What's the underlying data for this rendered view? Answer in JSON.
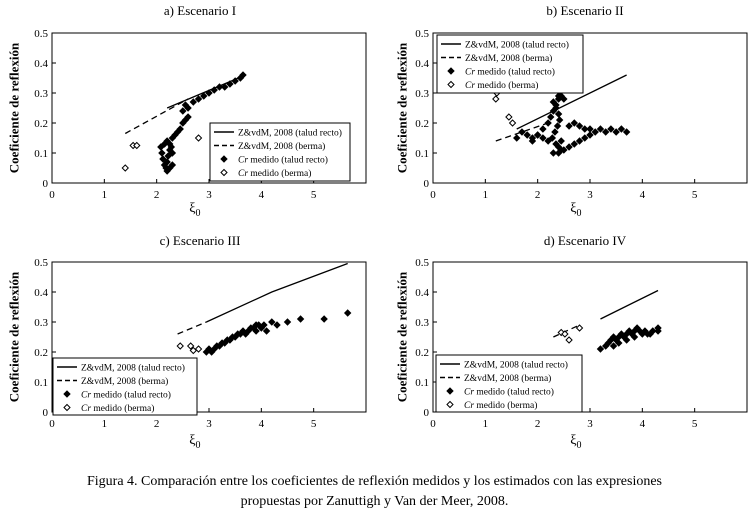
{
  "caption": {
    "line1": "Figura 4. Comparación entre los coeficientes de reflexión medidos y los estimados con las expresiones",
    "line2": "propuestas por Zanuttigh y Van der Meer, 2008."
  },
  "colors": {
    "ink": "#000000",
    "background": "#ffffff"
  },
  "chart_data": [
    {
      "type": "scatter",
      "title": "a) Escenario I",
      "xlabel": "ξ0",
      "ylabel": "Coeficiente de reflexión",
      "xlim": [
        0,
        6
      ],
      "ylim": [
        0,
        0.5
      ],
      "xticks": [
        0,
        1,
        2,
        3,
        4,
        5
      ],
      "yticks": [
        0,
        0.1,
        0.2,
        0.3,
        0.4,
        0.5
      ],
      "legend_position": "bottom-right",
      "series": [
        {
          "name": "Z&vdM, 2008 (talud recto)",
          "style": "solid",
          "x": [
            2.2,
            3.7
          ],
          "y": [
            0.25,
            0.36
          ]
        },
        {
          "name": "Z&vdM, 2008 (berma)",
          "style": "dashed",
          "x": [
            1.4,
            2.6
          ],
          "y": [
            0.165,
            0.28
          ]
        },
        {
          "name": "Cr medido (talud recto)",
          "style": "filled-diamond",
          "x": [
            2.08,
            2.1,
            2.12,
            2.15,
            2.18,
            2.2,
            2.22,
            2.25,
            2.28,
            2.3,
            2.15,
            2.2,
            2.25,
            2.3,
            2.35,
            2.4,
            2.45,
            2.5,
            2.55,
            2.6,
            2.5,
            2.55,
            2.6,
            2.7,
            2.8,
            2.9,
            3.0,
            3.1,
            3.2,
            3.3,
            3.4,
            3.5,
            3.6,
            3.65,
            2.2,
            2.25,
            2.3
          ],
          "y": [
            0.12,
            0.1,
            0.08,
            0.06,
            0.05,
            0.07,
            0.09,
            0.11,
            0.12,
            0.1,
            0.13,
            0.14,
            0.13,
            0.15,
            0.16,
            0.17,
            0.18,
            0.2,
            0.21,
            0.22,
            0.24,
            0.26,
            0.25,
            0.27,
            0.28,
            0.29,
            0.3,
            0.31,
            0.32,
            0.32,
            0.33,
            0.34,
            0.35,
            0.36,
            0.04,
            0.05,
            0.06
          ]
        },
        {
          "name": "Cr medido (berma)",
          "style": "open-diamond",
          "x": [
            1.4,
            1.55,
            1.62,
            2.8
          ],
          "y": [
            0.05,
            0.125,
            0.125,
            0.15
          ]
        }
      ]
    },
    {
      "type": "scatter",
      "title": "b) Escenario II",
      "xlabel": "ξ0",
      "ylabel": "Coeficiente de reflexión",
      "xlim": [
        0,
        6
      ],
      "ylim": [
        0,
        0.5
      ],
      "xticks": [
        0,
        1,
        2,
        3,
        4,
        5
      ],
      "yticks": [
        0,
        0.1,
        0.2,
        0.3,
        0.4,
        0.5
      ],
      "legend_position": "top-left",
      "series": [
        {
          "name": "Z&vdM, 2008 (talud recto)",
          "style": "solid",
          "x": [
            1.6,
            3.7
          ],
          "y": [
            0.18,
            0.36
          ]
        },
        {
          "name": "Z&vdM, 2008 (berma)",
          "style": "dashed",
          "x": [
            1.2,
            2.2
          ],
          "y": [
            0.14,
            0.2
          ]
        },
        {
          "name": "Cr medido (talud recto)",
          "style": "filled-diamond",
          "x": [
            1.6,
            1.7,
            1.8,
            1.9,
            2.0,
            2.1,
            2.2,
            2.25,
            2.3,
            2.35,
            2.4,
            2.45,
            2.3,
            2.35,
            2.4,
            2.42,
            2.38,
            2.33,
            2.28,
            2.2,
            2.1,
            2.0,
            1.9,
            2.35,
            2.4,
            2.45,
            2.3,
            2.4,
            2.45,
            2.5,
            2.6,
            2.7,
            2.8,
            2.9,
            3.0,
            3.1,
            3.2,
            3.3,
            3.4,
            3.5,
            3.6,
            3.7,
            2.4,
            2.5,
            2.6,
            2.7,
            2.8,
            2.9,
            3.0
          ],
          "y": [
            0.15,
            0.17,
            0.16,
            0.15,
            0.16,
            0.18,
            0.2,
            0.22,
            0.24,
            0.26,
            0.28,
            0.29,
            0.27,
            0.25,
            0.23,
            0.21,
            0.19,
            0.17,
            0.15,
            0.14,
            0.15,
            0.16,
            0.14,
            0.13,
            0.12,
            0.14,
            0.1,
            0.1,
            0.11,
            0.11,
            0.12,
            0.13,
            0.14,
            0.15,
            0.16,
            0.17,
            0.18,
            0.17,
            0.18,
            0.17,
            0.18,
            0.17,
            0.29,
            0.28,
            0.19,
            0.2,
            0.19,
            0.18,
            0.18
          ]
        },
        {
          "name": "Cr medido (berma)",
          "style": "open-diamond",
          "x": [
            1.2,
            1.22,
            1.45,
            1.52
          ],
          "y": [
            0.28,
            0.3,
            0.22,
            0.2
          ]
        }
      ]
    },
    {
      "type": "scatter",
      "title": "c) Escenario III",
      "xlabel": "ξ0",
      "ylabel": "Coeficiente de reflexión",
      "xlim": [
        0,
        6
      ],
      "ylim": [
        0,
        0.5
      ],
      "xticks": [
        0,
        1,
        2,
        3,
        4,
        5
      ],
      "yticks": [
        0,
        0.1,
        0.2,
        0.3,
        0.4,
        0.5
      ],
      "legend_position": "bottom-left",
      "series": [
        {
          "name": "Z&vdM, 2008 (talud recto)",
          "style": "solid",
          "x": [
            2.95,
            4.2,
            5.65
          ],
          "y": [
            0.3,
            0.4,
            0.495
          ]
        },
        {
          "name": "Z&vdM, 2008 (berma)",
          "style": "dashed",
          "x": [
            2.4,
            2.95
          ],
          "y": [
            0.26,
            0.3
          ]
        },
        {
          "name": "Cr medido (talud recto)",
          "style": "filled-diamond",
          "x": [
            2.95,
            3.0,
            3.05,
            3.1,
            3.15,
            3.2,
            3.25,
            3.3,
            3.35,
            3.4,
            3.45,
            3.5,
            3.55,
            3.6,
            3.65,
            3.7,
            3.75,
            3.8,
            3.85,
            3.9,
            3.95,
            4.0,
            4.05,
            4.1,
            3.9,
            4.2,
            4.3,
            4.5,
            4.75,
            5.2,
            5.65
          ],
          "y": [
            0.2,
            0.21,
            0.2,
            0.21,
            0.22,
            0.22,
            0.23,
            0.23,
            0.24,
            0.24,
            0.25,
            0.25,
            0.26,
            0.26,
            0.27,
            0.26,
            0.27,
            0.28,
            0.28,
            0.27,
            0.29,
            0.28,
            0.29,
            0.27,
            0.29,
            0.3,
            0.29,
            0.3,
            0.31,
            0.31,
            0.33
          ]
        },
        {
          "name": "Cr medido (berma)",
          "style": "open-diamond",
          "x": [
            2.45,
            2.65,
            2.7,
            2.8
          ],
          "y": [
            0.22,
            0.22,
            0.205,
            0.21
          ]
        }
      ]
    },
    {
      "type": "scatter",
      "title": "d) Escenario IV",
      "xlabel": "ξ0",
      "ylabel": "Coeficiente de reflexión",
      "xlim": [
        0,
        6
      ],
      "ylim": [
        0,
        0.5
      ],
      "xticks": [
        0,
        1,
        2,
        3,
        4,
        5
      ],
      "yticks": [
        0,
        0.1,
        0.2,
        0.3,
        0.4,
        0.5
      ],
      "legend_position": "bottom-left",
      "series": [
        {
          "name": "Z&vdM, 2008 (talud recto)",
          "style": "solid",
          "x": [
            3.2,
            4.3
          ],
          "y": [
            0.31,
            0.405
          ]
        },
        {
          "name": "Z&vdM, 2008 (berma)",
          "style": "dashed",
          "x": [
            2.3,
            2.8
          ],
          "y": [
            0.25,
            0.29
          ]
        },
        {
          "name": "Cr medido (talud recto)",
          "style": "filled-diamond",
          "x": [
            3.2,
            3.3,
            3.35,
            3.4,
            3.45,
            3.5,
            3.55,
            3.6,
            3.65,
            3.7,
            3.75,
            3.8,
            3.85,
            3.9,
            3.95,
            4.0,
            4.05,
            4.1,
            4.15,
            4.2,
            4.3,
            4.3,
            3.45,
            3.55,
            3.7,
            3.85
          ],
          "y": [
            0.21,
            0.22,
            0.23,
            0.24,
            0.25,
            0.24,
            0.25,
            0.26,
            0.25,
            0.26,
            0.27,
            0.26,
            0.27,
            0.28,
            0.27,
            0.26,
            0.27,
            0.26,
            0.26,
            0.27,
            0.27,
            0.28,
            0.22,
            0.23,
            0.24,
            0.25
          ]
        },
        {
          "name": "Cr medido (berma)",
          "style": "open-diamond",
          "x": [
            2.45,
            2.52,
            2.6,
            2.8
          ],
          "y": [
            0.265,
            0.26,
            0.24,
            0.28
          ]
        }
      ]
    }
  ]
}
